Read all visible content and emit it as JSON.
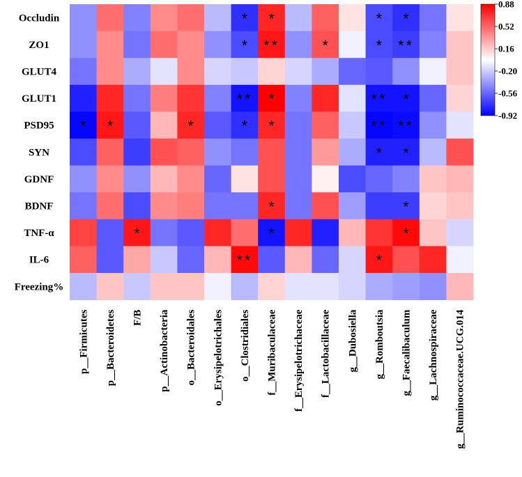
{
  "chart_data": {
    "type": "heatmap",
    "title": "",
    "rows": [
      "Occludin",
      "ZO1",
      "GLUT4",
      "GLUT1",
      "PSD95",
      "SYN",
      "GDNF",
      "BDNF",
      "TNF-α",
      "IL-6",
      "Freezing%"
    ],
    "columns": [
      "p__Firmicutes",
      "p__Bacteroidetes",
      "F/B",
      "p__Actinobacteria",
      "o__Bacteroidales",
      "o__Erysipelotrichales",
      "o__Clostridiales",
      "f__Muribaculaceae",
      "f__Erysipelotrichaceae",
      "f__Lactobacillaceae",
      "g__Dubosiella",
      "g__Romboutsia",
      "g__Faecalibaculum",
      "g__Lachnospiraceae",
      "g__Ruminococcaceae.UCG.014"
    ],
    "values": [
      [
        -0.4,
        0.5,
        -0.45,
        0.4,
        0.5,
        -0.25,
        -0.75,
        0.75,
        -0.25,
        0.55,
        0.1,
        -0.65,
        -0.75,
        -0.5,
        0.1
      ],
      [
        -0.4,
        0.4,
        -0.5,
        0.5,
        0.4,
        -0.4,
        -0.65,
        0.8,
        -0.4,
        0.6,
        -0.05,
        -0.65,
        -0.7,
        -0.45,
        0.2
      ],
      [
        -0.5,
        0.4,
        -0.3,
        -0.1,
        0.4,
        -0.15,
        -0.2,
        0.15,
        -0.15,
        -0.3,
        -0.55,
        -0.6,
        -0.4,
        -0.05,
        0.2
      ],
      [
        -0.8,
        0.75,
        -0.5,
        0.45,
        0.7,
        -0.45,
        -0.85,
        0.88,
        -0.45,
        0.75,
        -0.1,
        -0.85,
        -0.85,
        -0.55,
        0.15
      ],
      [
        -0.9,
        0.8,
        -0.6,
        0.25,
        0.75,
        -0.6,
        -0.75,
        0.75,
        -0.5,
        0.55,
        -0.2,
        -0.9,
        -0.88,
        -0.4,
        -0.1
      ],
      [
        -0.65,
        0.55,
        -0.7,
        0.6,
        0.55,
        -0.4,
        -0.5,
        0.6,
        -0.5,
        0.35,
        -0.3,
        -0.8,
        -0.8,
        -0.25,
        0.6
      ],
      [
        -0.4,
        0.4,
        -0.4,
        0.25,
        0.4,
        -0.55,
        0.1,
        0.6,
        -0.5,
        0.05,
        -0.65,
        -0.55,
        -0.45,
        0.2,
        0.25
      ],
      [
        -0.5,
        0.5,
        -0.65,
        0.4,
        0.45,
        -0.5,
        -0.5,
        0.75,
        -0.5,
        0.6,
        -0.35,
        -0.7,
        -0.7,
        0.15,
        0.2
      ],
      [
        0.65,
        -0.6,
        0.8,
        -0.5,
        -0.6,
        0.75,
        0.5,
        -0.85,
        0.75,
        -0.8,
        0.25,
        0.7,
        0.85,
        0.2,
        -0.15
      ],
      [
        0.55,
        -0.6,
        0.3,
        -0.2,
        -0.55,
        0.25,
        0.85,
        -0.6,
        0.25,
        -0.55,
        -0.15,
        0.8,
        0.6,
        0.75,
        -0.05
      ],
      [
        -0.25,
        0.2,
        -0.2,
        0.2,
        0.2,
        -0.05,
        -0.25,
        0.15,
        -0.1,
        -0.1,
        -0.15,
        -0.3,
        -0.35,
        -0.4,
        0.25
      ]
    ],
    "significance": [
      [
        "",
        "",
        "",
        "",
        "",
        "",
        "*",
        "*",
        "",
        "",
        "",
        "*",
        "*",
        "",
        ""
      ],
      [
        "",
        "",
        "",
        "",
        "",
        "",
        "*",
        "**",
        "",
        "*",
        "",
        "*",
        "**",
        "",
        ""
      ],
      [
        "",
        "",
        "",
        "",
        "",
        "",
        "",
        "",
        "",
        "",
        "",
        "",
        "",
        "",
        ""
      ],
      [
        "",
        "",
        "",
        "",
        "",
        "",
        "**",
        "*",
        "",
        "",
        "",
        "**",
        "*",
        "",
        ""
      ],
      [
        "*",
        "*",
        "",
        "",
        "*",
        "",
        "*",
        "*",
        "",
        "",
        "",
        "**",
        "**",
        "",
        ""
      ],
      [
        "",
        "",
        "",
        "",
        "",
        "",
        "",
        "",
        "",
        "",
        "",
        "*",
        "*",
        "",
        ""
      ],
      [
        "",
        "",
        "",
        "",
        "",
        "",
        "",
        "",
        "",
        "",
        "",
        "",
        "",
        "",
        ""
      ],
      [
        "",
        "",
        "",
        "",
        "",
        "",
        "",
        "*",
        "",
        "",
        "",
        "",
        "*",
        "",
        ""
      ],
      [
        "",
        "",
        "*",
        "",
        "",
        "",
        "",
        "*",
        "",
        "",
        "",
        "",
        "*",
        "",
        ""
      ],
      [
        "",
        "",
        "",
        "",
        "",
        "",
        "**",
        "",
        "",
        "",
        "",
        "*",
        "",
        "",
        ""
      ],
      [
        "",
        "",
        "",
        "",
        "",
        "",
        "",
        "",
        "",
        "",
        "",
        "",
        "",
        "",
        ""
      ]
    ],
    "colorbar": {
      "min": -0.92,
      "max": 0.88,
      "ticks": [
        "0.88",
        "0.52",
        "0.16",
        "-0.20",
        "-0.56",
        "-0.92"
      ],
      "colors": {
        "low": "#0000ff",
        "mid": "#ffffff",
        "high": "#ff0000"
      }
    }
  }
}
